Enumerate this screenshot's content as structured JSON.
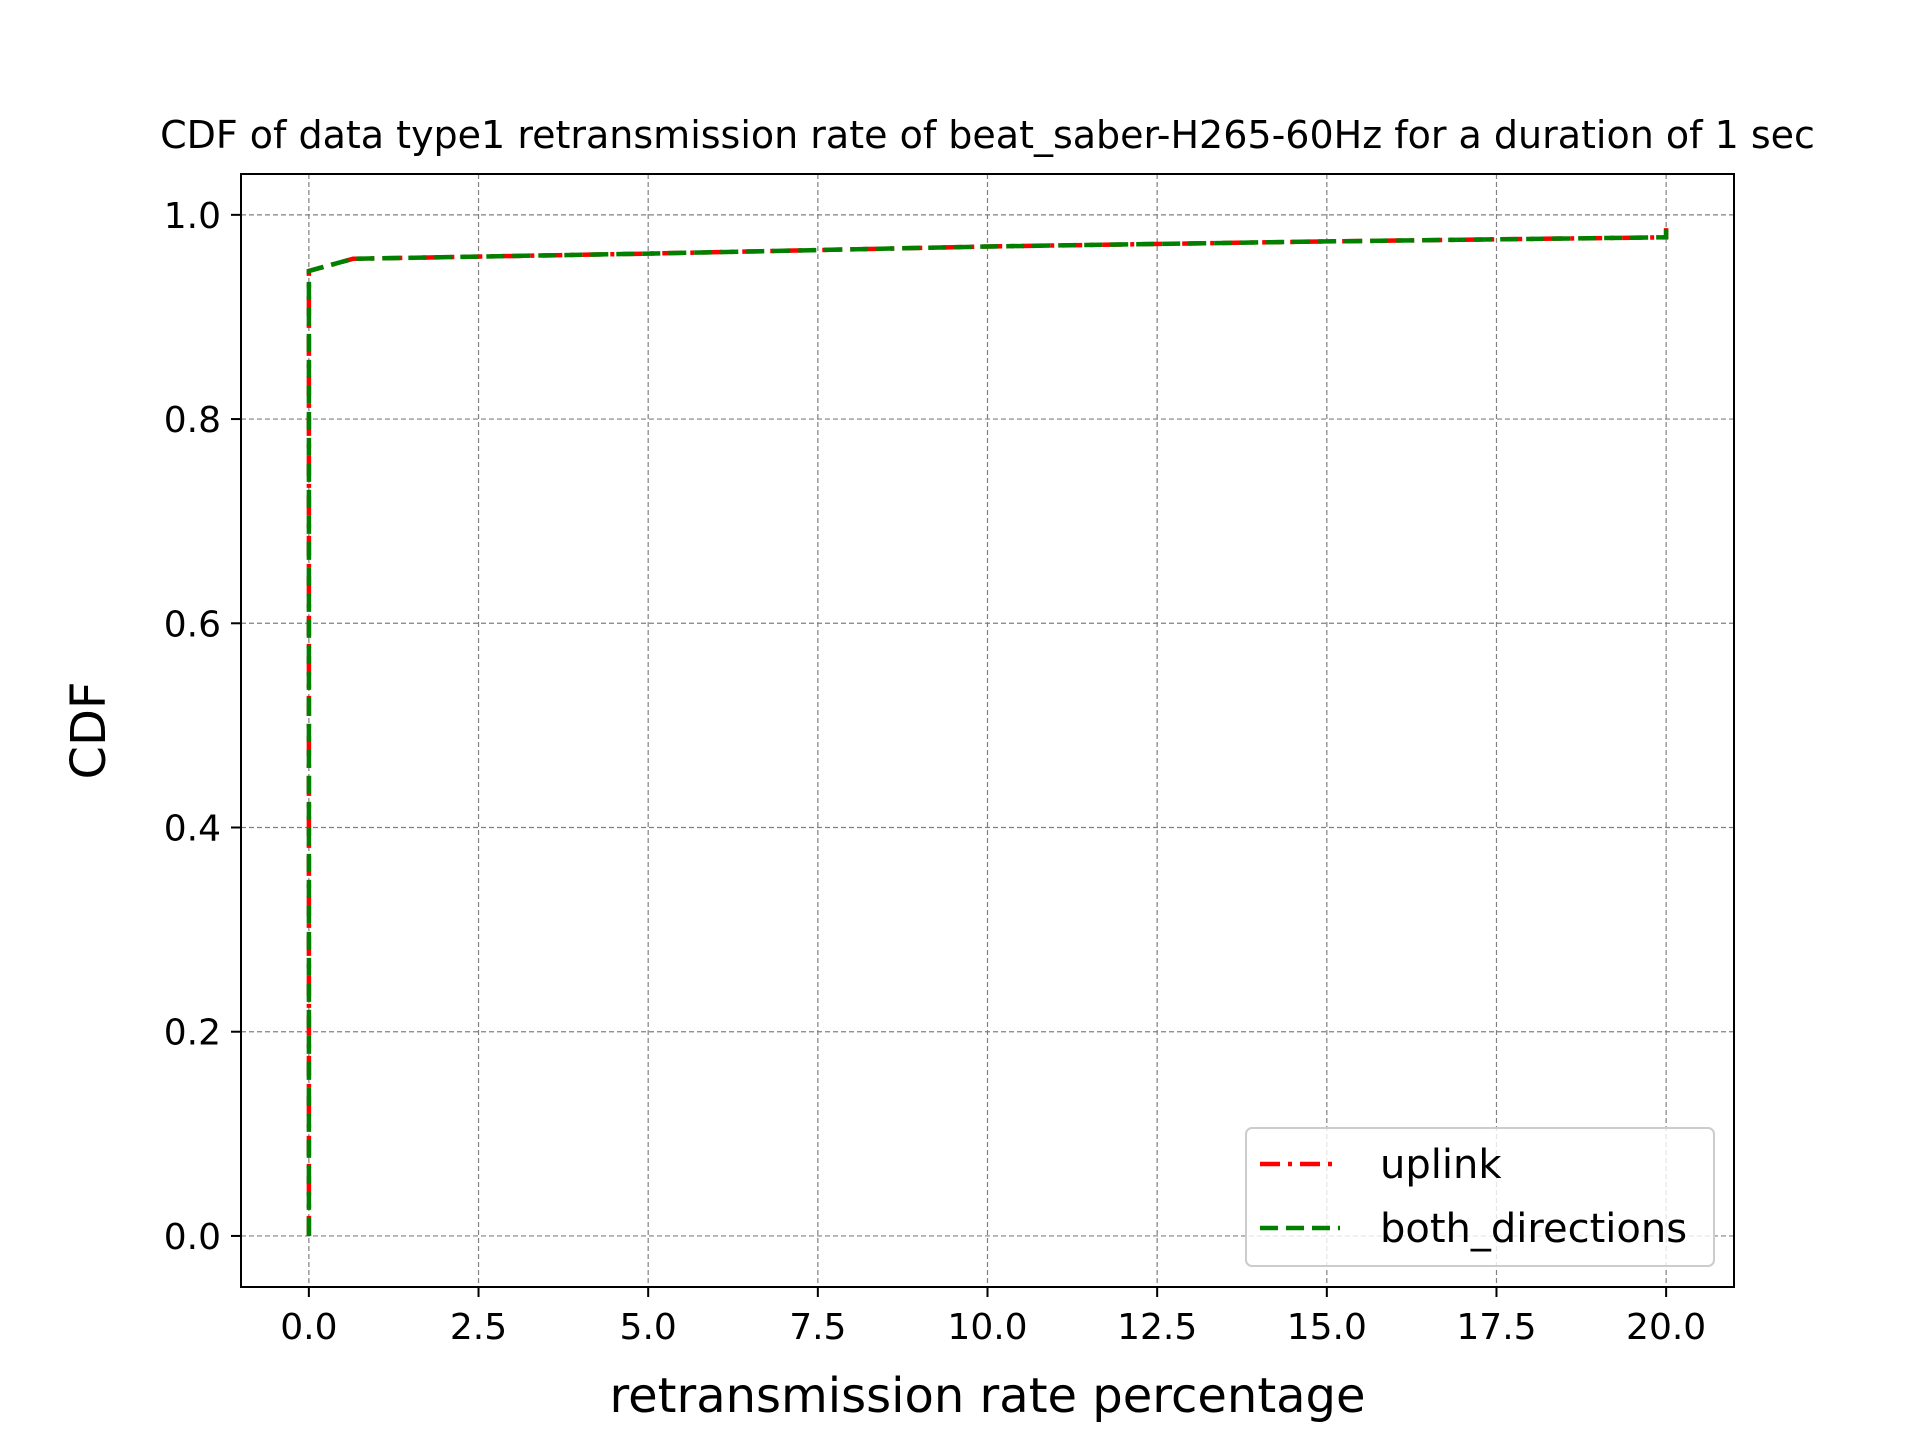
{
  "chart_data": {
    "type": "line",
    "title": "CDF of data type1 retransmission rate of beat_saber-H265-60Hz for a duration of 1 sec",
    "xlabel": "retransmission rate percentage",
    "ylabel": "CDF",
    "xlim": [
      -1.0,
      21.0
    ],
    "ylim": [
      -0.05,
      1.04
    ],
    "xticks": [
      0.0,
      2.5,
      5.0,
      7.5,
      10.0,
      12.5,
      15.0,
      17.5,
      20.0
    ],
    "xtick_labels": [
      "0.0",
      "2.5",
      "5.0",
      "7.5",
      "10.0",
      "12.5",
      "15.0",
      "17.5",
      "20.0"
    ],
    "yticks": [
      0.0,
      0.2,
      0.4,
      0.6,
      0.8,
      1.0
    ],
    "ytick_labels": [
      "0.0",
      "0.2",
      "0.4",
      "0.6",
      "0.8",
      "1.0"
    ],
    "grid": true,
    "legend_position": "bottom-right",
    "series": [
      {
        "name": "uplink",
        "color": "#ff0000",
        "style": "dash-dot",
        "x": [
          0.0,
          0.0,
          0.65,
          5.0,
          10.0,
          15.0,
          20.0,
          20.0
        ],
        "y": [
          0.0,
          0.945,
          0.957,
          0.962,
          0.969,
          0.974,
          0.978,
          0.987
        ]
      },
      {
        "name": "both_directions",
        "color": "#008000",
        "style": "dashed",
        "x": [
          0.0,
          0.0,
          0.65,
          5.0,
          10.0,
          15.0,
          20.0,
          20.0
        ],
        "y": [
          0.0,
          0.945,
          0.957,
          0.962,
          0.969,
          0.974,
          0.978,
          0.987
        ]
      }
    ]
  }
}
